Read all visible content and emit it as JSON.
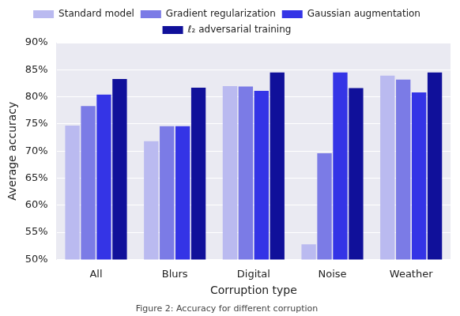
{
  "chart_data": {
    "type": "bar",
    "x_label": "Corruption type",
    "y_label": "Average accuracy",
    "caption": "Figure 2: Accuracy for different corruption",
    "categories": [
      "All",
      "Blurs",
      "Digital",
      "Noise",
      "Weather"
    ],
    "series": [
      {
        "name": "Standard model",
        "color": "#babaf0",
        "values": [
          74.7,
          71.8,
          82.0,
          52.8,
          83.9
        ]
      },
      {
        "name": "Gradient regularization",
        "color": "#7b7be6",
        "values": [
          78.3,
          74.6,
          81.9,
          69.6,
          83.2
        ]
      },
      {
        "name": "Gaussian augmentation",
        "color": "#3434e6",
        "values": [
          80.4,
          74.6,
          81.1,
          84.5,
          80.8
        ]
      },
      {
        "name": "ℓ₂ adversarial training",
        "color": "#10109a",
        "values": [
          83.3,
          81.7,
          84.5,
          81.6,
          84.5
        ]
      }
    ],
    "ylim": [
      50,
      90
    ],
    "yticks": [
      {
        "value": 50,
        "label": "50%"
      },
      {
        "value": 55,
        "label": "55%"
      },
      {
        "value": 60,
        "label": "60%"
      },
      {
        "value": 65,
        "label": "65%"
      },
      {
        "value": 70,
        "label": "70%"
      },
      {
        "value": 75,
        "label": "75%"
      },
      {
        "value": 80,
        "label": "80%"
      },
      {
        "value": 85,
        "label": "85%"
      },
      {
        "value": 90,
        "label": "90%"
      }
    ],
    "grid": true,
    "legend": "top"
  }
}
